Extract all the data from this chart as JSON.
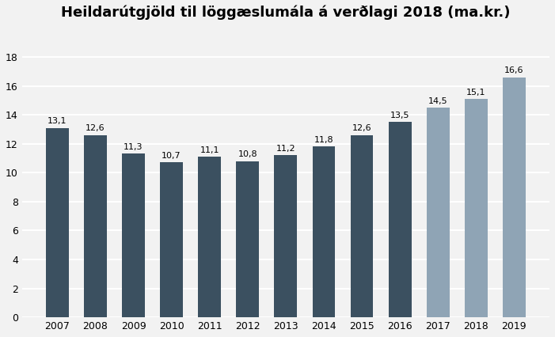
{
  "title": "Heildarútgjöld til löggæslumála á verðlagi 2018 (ma.kr.)",
  "years": [
    "2007",
    "2008",
    "2009",
    "2010",
    "2011",
    "2012",
    "2013",
    "2014",
    "2015",
    "2016",
    "2017",
    "2018",
    "2019"
  ],
  "values": [
    13.1,
    12.6,
    11.3,
    10.7,
    11.1,
    10.8,
    11.2,
    11.8,
    12.6,
    13.5,
    14.5,
    15.1,
    16.6
  ],
  "bar_colors": [
    "#3B5060",
    "#3B5060",
    "#3B5060",
    "#3B5060",
    "#3B5060",
    "#3B5060",
    "#3B5060",
    "#3B5060",
    "#3B5060",
    "#3B5060",
    "#8FA4B5",
    "#8FA4B5",
    "#8FA4B5"
  ],
  "ylim": [
    0,
    20
  ],
  "yticks": [
    0,
    2,
    4,
    6,
    8,
    10,
    12,
    14,
    16,
    18
  ],
  "background_color": "#F2F2F2",
  "plot_bg_color": "#F2F2F2",
  "label_fontsize": 8.0,
  "title_fontsize": 13,
  "axis_fontsize": 9,
  "bar_width": 0.6,
  "grid_color": "#FFFFFF",
  "grid_linewidth": 1.5
}
